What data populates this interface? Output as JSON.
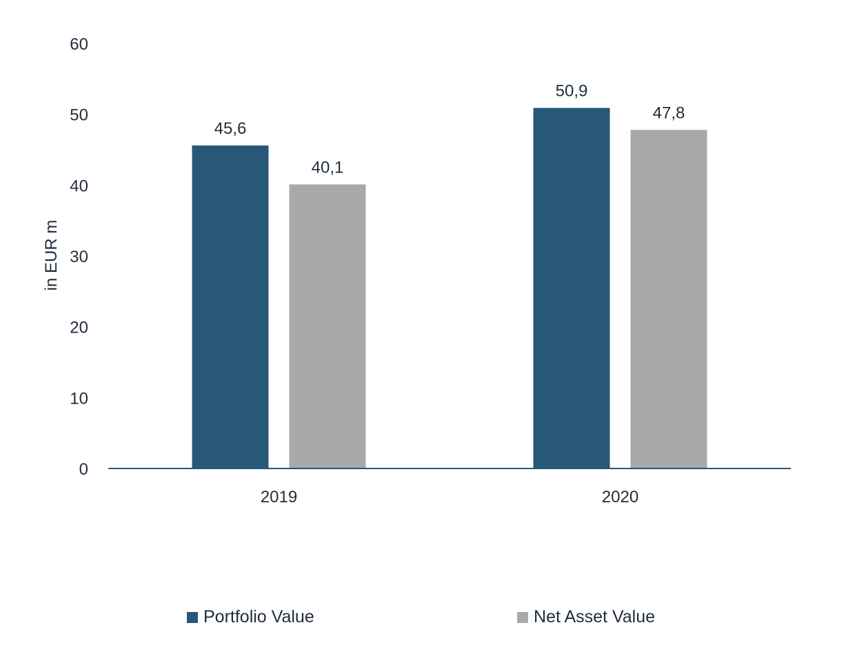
{
  "chart_data": {
    "type": "bar",
    "categories": [
      "2019",
      "2020"
    ],
    "series": [
      {
        "name": "Portfolio Value",
        "values": [
          45.6,
          50.9
        ],
        "labels": [
          "45,6",
          "50,9"
        ],
        "color": "#275878"
      },
      {
        "name": "Net Asset Value",
        "values": [
          40.1,
          47.8
        ],
        "labels": [
          "40,1",
          "47,8"
        ],
        "color": "#a9a9aa"
      }
    ],
    "ylabel": "in EUR m",
    "ylim": [
      0,
      60
    ],
    "yticks": [
      0,
      10,
      20,
      30,
      40,
      50,
      60
    ],
    "grid": false,
    "legend_position": "bottom"
  },
  "colors": {
    "axis": "#275878",
    "text": "#1f2d3d"
  }
}
